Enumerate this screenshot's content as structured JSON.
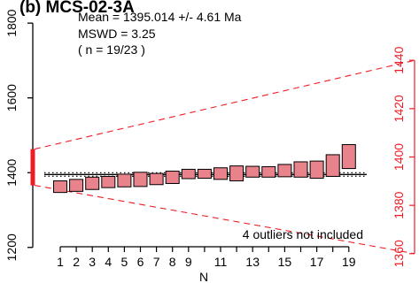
{
  "title": "(b) MCS-02-3A",
  "stats": {
    "mean_line": "Mean = 1395.014 +/- 4.61 Ma",
    "mswd_line": "MSWD = 3.25",
    "n_line": "( n = 19/23 )"
  },
  "outlier_note": "4 outliers not included",
  "colors": {
    "box_fill": "#e8838b",
    "box_stroke": "#000000",
    "accent_red": "#ee1c25"
  },
  "chart_data": {
    "type": "weighted-mean",
    "mean": 1395.014,
    "mean_error": 4.61,
    "mean_bounds": [
      1390.4,
      1399.6
    ],
    "mswd": 3.25,
    "n_included": 19,
    "n_total": 23,
    "left_axis": {
      "ylim": [
        1190,
        1850
      ],
      "ticks": [
        1200,
        1400,
        1600,
        1800
      ],
      "tick_labels": [
        "1200",
        "1400",
        "1600",
        "1800"
      ]
    },
    "x_axis": {
      "xlabel": "N",
      "tick_labels": [
        "1",
        "2",
        "3",
        "4",
        "5",
        "6",
        "7",
        "8",
        "9",
        "11",
        "13",
        "15",
        "17",
        "19"
      ],
      "label_positions": [
        1,
        2,
        3,
        4,
        5,
        6,
        7,
        8,
        9,
        11,
        13,
        15,
        17,
        19
      ]
    },
    "right_axis": {
      "ylim": [
        1357,
        1443
      ],
      "ticks": [
        1360,
        1380,
        1400,
        1420,
        1440
      ],
      "tick_labels": [
        "1360",
        "1380",
        "1400",
        "1420",
        "1440"
      ]
    },
    "fan_range": [
      1366,
      1463
    ],
    "points": [
      {
        "n": 1,
        "low": 1347,
        "high": 1378
      },
      {
        "n": 2,
        "low": 1350,
        "high": 1382
      },
      {
        "n": 3,
        "low": 1355,
        "high": 1388
      },
      {
        "n": 4,
        "low": 1360,
        "high": 1390
      },
      {
        "n": 5,
        "low": 1362,
        "high": 1396
      },
      {
        "n": 6,
        "low": 1363,
        "high": 1401
      },
      {
        "n": 7,
        "low": 1368,
        "high": 1398
      },
      {
        "n": 8,
        "low": 1371,
        "high": 1404
      },
      {
        "n": 9,
        "low": 1384,
        "high": 1409
      },
      {
        "n": 10,
        "low": 1385,
        "high": 1409
      },
      {
        "n": 11,
        "low": 1382,
        "high": 1413
      },
      {
        "n": 12,
        "low": 1378,
        "high": 1418
      },
      {
        "n": 13,
        "low": 1388,
        "high": 1417
      },
      {
        "n": 14,
        "low": 1388,
        "high": 1416
      },
      {
        "n": 15,
        "low": 1389,
        "high": 1422
      },
      {
        "n": 16,
        "low": 1388,
        "high": 1429
      },
      {
        "n": 17,
        "low": 1385,
        "high": 1431
      },
      {
        "n": 18,
        "low": 1390,
        "high": 1448
      },
      {
        "n": 19,
        "low": 1411,
        "high": 1475
      }
    ]
  }
}
